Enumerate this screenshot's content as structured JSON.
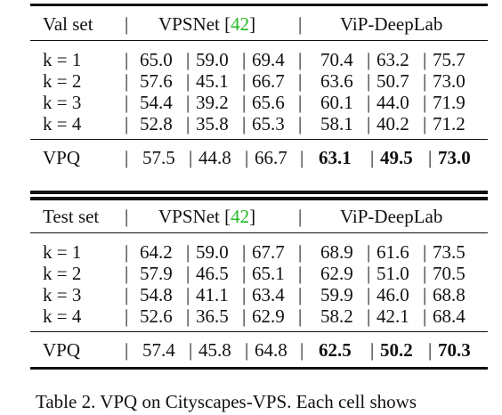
{
  "tables": [
    {
      "header": {
        "set": "Val set",
        "method_a": "VPSNet [",
        "cite": "42",
        "close": "]",
        "method_b": "ViP-DeepLab"
      },
      "rows": [
        {
          "k": "k = 1",
          "a": [
            "65.0",
            "59.0",
            "69.4"
          ],
          "b": [
            "70.4",
            "63.2",
            "75.7"
          ]
        },
        {
          "k": "k = 2",
          "a": [
            "57.6",
            "45.1",
            "66.7"
          ],
          "b": [
            "63.6",
            "50.7",
            "73.0"
          ]
        },
        {
          "k": "k = 3",
          "a": [
            "54.4",
            "39.2",
            "65.6"
          ],
          "b": [
            "60.1",
            "44.0",
            "71.9"
          ]
        },
        {
          "k": "k = 4",
          "a": [
            "52.8",
            "35.8",
            "65.3"
          ],
          "b": [
            "58.1",
            "40.2",
            "71.2"
          ]
        }
      ],
      "summary": {
        "k": "VPQ",
        "a": [
          "57.5",
          "44.8",
          "66.7"
        ],
        "b": [
          "63.1",
          "49.5",
          "73.0"
        ]
      }
    },
    {
      "header": {
        "set": "Test set",
        "method_a": "VPSNet [",
        "cite": "42",
        "close": "]",
        "method_b": "ViP-DeepLab"
      },
      "rows": [
        {
          "k": "k = 1",
          "a": [
            "64.2",
            "59.0",
            "67.7"
          ],
          "b": [
            "68.9",
            "61.6",
            "73.5"
          ]
        },
        {
          "k": "k = 2",
          "a": [
            "57.9",
            "46.5",
            "65.1"
          ],
          "b": [
            "62.9",
            "51.0",
            "70.5"
          ]
        },
        {
          "k": "k = 3",
          "a": [
            "54.8",
            "41.1",
            "63.4"
          ],
          "b": [
            "59.9",
            "46.0",
            "68.8"
          ]
        },
        {
          "k": "k = 4",
          "a": [
            "52.6",
            "36.5",
            "62.9"
          ],
          "b": [
            "58.2",
            "42.1",
            "68.4"
          ]
        }
      ],
      "summary": {
        "k": "VPQ",
        "a": [
          "57.4",
          "45.8",
          "64.8"
        ],
        "b": [
          "62.5",
          "50.2",
          "70.3"
        ]
      }
    }
  ],
  "caption": "Table 2. VPQ on Cityscapes-VPS. Each cell shows"
}
